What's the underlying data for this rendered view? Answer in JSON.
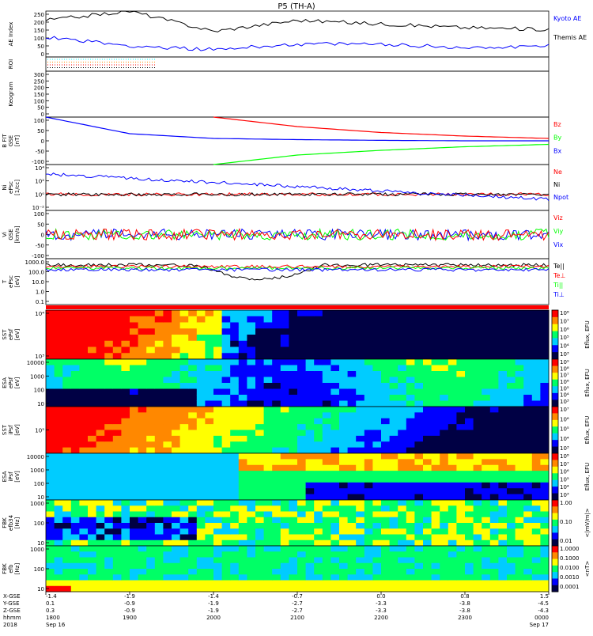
{
  "title": "P5 (TH-A)",
  "colors": {
    "black": "#000000",
    "blue": "#0000ff",
    "red": "#ff0000",
    "green": "#00ff00",
    "cyan": "#00ffff",
    "orange": "#ff8800"
  },
  "panels": [
    {
      "id": "ae",
      "ylabel": "AE Index",
      "ticks": [
        "250",
        "200",
        "150",
        "100",
        "50",
        "0"
      ],
      "legend": [
        {
          "text": "Kyoto AE",
          "color": "#0000ff"
        },
        {
          "text": "Themis AE",
          "color": "#000000"
        }
      ]
    },
    {
      "id": "roi",
      "ylabel": "ROI",
      "ticks": [],
      "legend": []
    },
    {
      "id": "keogram",
      "ylabel": "Keogram",
      "ticks": [
        "300",
        "250",
        "200",
        "150",
        "100",
        "50",
        "0"
      ],
      "legend": []
    },
    {
      "id": "bfit",
      "ylabel": "B FIT\nGSE\n[nT]",
      "ticks": [
        "100",
        "50",
        "0",
        "-50",
        "-100"
      ],
      "legend": [
        {
          "text": "Bz",
          "color": "#ff0000"
        },
        {
          "text": "By",
          "color": "#00ff00"
        },
        {
          "text": "Bx",
          "color": "#0000ff"
        }
      ]
    },
    {
      "id": "n",
      "ylabel": "Ni\nePsc\n[1/cc]",
      "ticks": [
        "10⁴",
        "10²",
        "10⁰",
        "10⁻²"
      ],
      "legend": [
        {
          "text": "Ne",
          "color": "#ff0000"
        },
        {
          "text": "Ni",
          "color": "#000000"
        },
        {
          "text": "Npot",
          "color": "#0000ff"
        }
      ]
    },
    {
      "id": "v",
      "ylabel": "Vi\nGSE\n[km/s]",
      "ticks": [
        "100",
        "50",
        "0",
        "-50",
        "-100"
      ],
      "legend": [
        {
          "text": "Viz",
          "color": "#ff0000"
        },
        {
          "text": "Viy",
          "color": "#00ff00"
        },
        {
          "text": "Vix",
          "color": "#0000ff"
        }
      ]
    },
    {
      "id": "t",
      "ylabel": "T\nePsc\n[eV]",
      "ticks": [
        "1000.0",
        "100.0",
        "10.0",
        "1.0",
        "0.1"
      ],
      "legend": [
        {
          "text": "Te||",
          "color": "#000000"
        },
        {
          "text": "Te⊥",
          "color": "#ff0000"
        },
        {
          "text": "Ti||",
          "color": "#00ff00"
        },
        {
          "text": "Ti⊥",
          "color": "#0000ff"
        }
      ]
    },
    {
      "id": "sst_e",
      "ylabel": "SST\nePsf\n[eV]",
      "ticks": [
        "10⁴",
        "10³"
      ],
      "cbticks": [
        "10⁸",
        "10⁷",
        "10⁶",
        "10⁵",
        "10⁴",
        "10³"
      ],
      "cblabel": "Eflux, EFU"
    },
    {
      "id": "esa_e",
      "ylabel": "ESA\nePsf\n[eV]",
      "ticks": [
        "10000",
        "1000",
        "100",
        "10"
      ],
      "cbticks": [
        "10⁹",
        "10⁸",
        "10⁷",
        "10⁶",
        "10⁵",
        "10⁴",
        "10³"
      ],
      "cblabel": "Eflux, EFU"
    },
    {
      "id": "sst_i",
      "ylabel": "SST\niPsf\n[eV]",
      "ticks": [
        "10⁵"
      ],
      "cbticks": [
        "10⁷",
        "10⁶",
        "10⁵",
        "10⁴",
        "10³"
      ],
      "cblabel": "Eflux, EFU"
    },
    {
      "id": "esa_i",
      "ylabel": "ESA\niPsf\n[eV]",
      "ticks": [
        "10000",
        "1000",
        "100",
        "10"
      ],
      "cbticks": [
        "10⁸",
        "10⁷",
        "10⁶",
        "10⁵",
        "10⁴",
        "10³"
      ],
      "cblabel": "Eflux, EFU"
    },
    {
      "id": "fbk_b",
      "ylabel": "FBK\nefb34\n[Hz]",
      "ticks": [
        "1000",
        "100",
        "10"
      ],
      "cbticks": [
        "1.00",
        "0.10",
        "0.01"
      ],
      "cblabel": "<|mV/m|>"
    },
    {
      "id": "fbk_e",
      "ylabel": "FBK\nefb\n[Hz]",
      "ticks": [
        "1000",
        "100",
        "10"
      ],
      "cbticks": [
        "1.0000",
        "0.1000",
        "0.0100",
        "0.0010",
        "0.0001"
      ],
      "cblabel": "<nT>"
    }
  ],
  "axis_labels": {
    "rows": [
      "X-GSE",
      "Y-GSE",
      "Z-GSE",
      "hhmm",
      "2018"
    ],
    "columns": [
      {
        "vals": [
          "-1.4",
          "0.1",
          "0.3",
          "1800",
          "Sep 16"
        ]
      },
      {
        "vals": [
          "-1.9",
          "-0.9",
          "-0.9",
          "1900",
          ""
        ]
      },
      {
        "vals": [
          "-1.4",
          "-1.9",
          "-1.9",
          "2000",
          ""
        ]
      },
      {
        "vals": [
          "-0.7",
          "-2.7",
          "-2.7",
          "2100",
          ""
        ]
      },
      {
        "vals": [
          "0.0",
          "-3.3",
          "-3.3",
          "2200",
          ""
        ]
      },
      {
        "vals": [
          "0.8",
          "-3.8",
          "-3.8",
          "2300",
          ""
        ]
      },
      {
        "vals": [
          "1.5",
          "-4.5",
          "-4.3",
          "0000",
          "Sep 17"
        ]
      }
    ]
  },
  "chart_data": {
    "type": "line",
    "title": "P5 (TH-A)",
    "x": [
      "1800",
      "1900",
      "2000",
      "2100",
      "2200",
      "2300",
      "0000"
    ],
    "series": [
      {
        "name": "Kyoto AE",
        "panel": "ae",
        "values": [
          110,
          60,
          40,
          70,
          70,
          50,
          60
        ]
      },
      {
        "name": "Themis AE",
        "panel": "ae",
        "values": [
          200,
          250,
          140,
          200,
          180,
          160,
          150
        ]
      },
      {
        "name": "Bz",
        "panel": "bfit",
        "values": [
          null,
          null,
          100,
          60,
          35,
          20,
          10
        ]
      },
      {
        "name": "By",
        "panel": "bfit",
        "values": [
          null,
          null,
          -100,
          -60,
          -40,
          -25,
          -15
        ]
      },
      {
        "name": "Bx",
        "panel": "bfit",
        "values": [
          100,
          30,
          10,
          5,
          2,
          0,
          0
        ]
      }
    ],
    "ylim": [
      -100,
      250
    ]
  }
}
